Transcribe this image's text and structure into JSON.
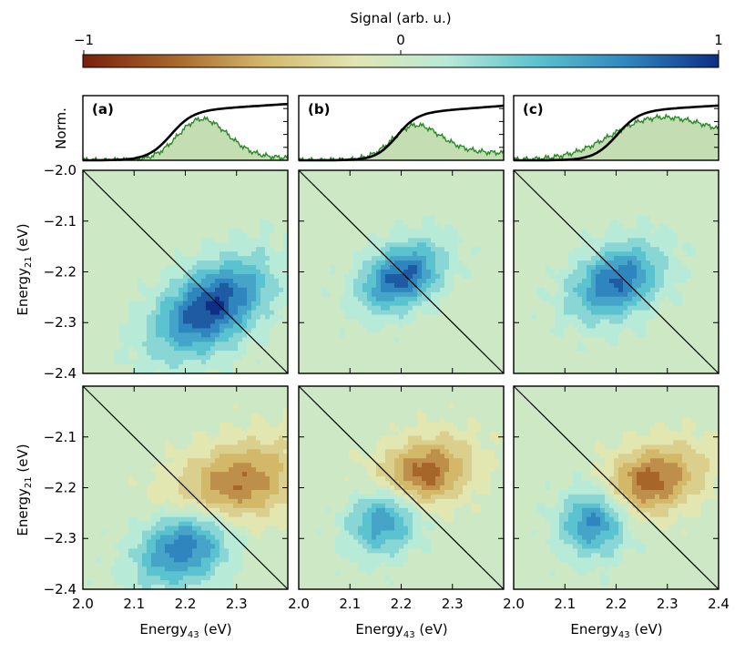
{
  "chart_data": {
    "type": "heatmap",
    "colorbar": {
      "label": "Signal (arb. u.)",
      "range": [
        -1,
        1
      ],
      "ticks": [
        "−1",
        "0",
        "1"
      ],
      "stops": [
        "#7a1f0a",
        "#a8652a",
        "#d4b86a",
        "#e2e6b0",
        "#b8ead8",
        "#5bc2cf",
        "#2f86bf",
        "#0d2f86"
      ]
    },
    "axes": {
      "xlabel_main": "Energy",
      "xlabel_sub": "43",
      "xlabel_unit": " (eV)",
      "ylabel_main": "Energy",
      "ylabel_sub": "21",
      "ylabel_unit": " (eV)",
      "norm_label": "Norm.",
      "xlim": [
        2.0,
        2.4
      ],
      "ylim": [
        -2.4,
        -2.0
      ],
      "xticks": [
        {
          "v": 2.0,
          "t": "2.0"
        },
        {
          "v": 2.1,
          "t": "2.1"
        },
        {
          "v": 2.2,
          "t": "2.2"
        },
        {
          "v": 2.3,
          "t": "2.3"
        },
        {
          "v": 2.4,
          "t": "2.4"
        }
      ],
      "yticks_top": [
        {
          "v": -2.0,
          "t": "−2.0"
        },
        {
          "v": -2.1,
          "t": "−2.1"
        },
        {
          "v": -2.2,
          "t": "−2.2"
        },
        {
          "v": -2.3,
          "t": "−2.3"
        },
        {
          "v": -2.4,
          "t": "−2.4"
        }
      ],
      "yticks_bottom": [
        {
          "v": -2.1,
          "t": "−2.1"
        },
        {
          "v": -2.2,
          "t": "−2.2"
        },
        {
          "v": -2.3,
          "t": "−2.3"
        },
        {
          "v": -2.4,
          "t": "−2.4"
        }
      ]
    },
    "panels": [
      {
        "label": "(a)",
        "spectrum_shape": {
          "center": 2.22,
          "width": 0.055,
          "edge": 2.17,
          "edge_width": 0.035,
          "floor": 0.05
        },
        "edge_curve": {
          "center": 2.17,
          "width": 0.022,
          "plateau": 0.82,
          "slope": 1.1
        },
        "top": [
          {
            "x": 2.25,
            "y": -2.27,
            "amp": 0.95,
            "sx": 0.085,
            "sy": 0.05,
            "rot": -0.62
          }
        ],
        "bottom": [
          {
            "x": 2.2,
            "y": -2.31,
            "amp": 0.85,
            "sx": 0.07,
            "sy": 0.05,
            "rot": -0.55
          },
          {
            "x": 2.29,
            "y": -2.2,
            "amp": -0.7,
            "sx": 0.09,
            "sy": 0.055,
            "rot": -0.4
          }
        ]
      },
      {
        "label": "(b)",
        "spectrum_shape": {
          "center": 2.2,
          "width": 0.06,
          "edge": 2.19,
          "edge_width": 0.03,
          "floor": 0.15
        },
        "edge_curve": {
          "center": 2.19,
          "width": 0.02,
          "plateau": 0.78,
          "slope": 1.3
        },
        "top": [
          {
            "x": 2.2,
            "y": -2.21,
            "amp": 0.85,
            "sx": 0.06,
            "sy": 0.04,
            "rot": -0.55
          }
        ],
        "bottom": [
          {
            "x": 2.17,
            "y": -2.25,
            "amp": 0.8,
            "sx": 0.055,
            "sy": 0.045,
            "rot": -0.9
          },
          {
            "x": 2.23,
            "y": -2.18,
            "amp": -0.85,
            "sx": 0.07,
            "sy": 0.045,
            "rot": -0.4
          }
        ]
      },
      {
        "label": "(c)",
        "spectrum_shape": {
          "center": 2.25,
          "width": 0.12,
          "edge": 2.18,
          "edge_width": 0.05,
          "floor": 0.35
        },
        "edge_curve": {
          "center": 2.2,
          "width": 0.022,
          "plateau": 0.82,
          "slope": 1.0
        },
        "top": [
          {
            "x": 2.2,
            "y": -2.22,
            "amp": 0.8,
            "sx": 0.065,
            "sy": 0.045,
            "rot": -0.55
          }
        ],
        "bottom": [
          {
            "x": 2.16,
            "y": -2.26,
            "amp": 0.8,
            "sx": 0.05,
            "sy": 0.045,
            "rot": -1.0
          },
          {
            "x": 2.26,
            "y": -2.19,
            "amp": -0.75,
            "sx": 0.075,
            "sy": 0.045,
            "rot": -0.35
          }
        ]
      }
    ]
  }
}
